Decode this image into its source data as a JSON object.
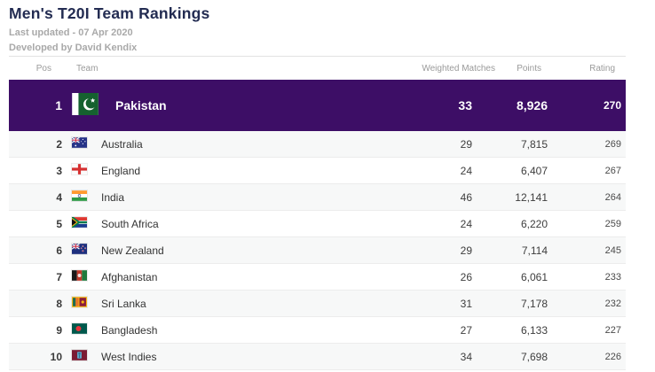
{
  "page": {
    "title": "Men's T20I Team Rankings",
    "last_updated": "Last updated - 07 Apr 2020",
    "developed_by": "Developed by David Kendix"
  },
  "colors": {
    "highlight_purple": "#3d0e66",
    "title_navy": "#232c52"
  },
  "table": {
    "columns": [
      "Pos",
      "Team",
      "Weighted Matches",
      "Points",
      "Rating"
    ],
    "rows": [
      {
        "pos": "1",
        "team": "Pakistan",
        "flag": "pakistan-flag",
        "weighted_matches": "33",
        "points": "8,926",
        "rating": "270",
        "highlight": true
      },
      {
        "pos": "2",
        "team": "Australia",
        "flag": "australia-flag",
        "weighted_matches": "29",
        "points": "7,815",
        "rating": "269"
      },
      {
        "pos": "3",
        "team": "England",
        "flag": "england-flag",
        "weighted_matches": "24",
        "points": "6,407",
        "rating": "267"
      },
      {
        "pos": "4",
        "team": "India",
        "flag": "india-flag",
        "weighted_matches": "46",
        "points": "12,141",
        "rating": "264"
      },
      {
        "pos": "5",
        "team": "South Africa",
        "flag": "south-africa-flag",
        "weighted_matches": "24",
        "points": "6,220",
        "rating": "259"
      },
      {
        "pos": "6",
        "team": "New Zealand",
        "flag": "new-zealand-flag",
        "weighted_matches": "29",
        "points": "7,114",
        "rating": "245"
      },
      {
        "pos": "7",
        "team": "Afghanistan",
        "flag": "afghanistan-flag",
        "weighted_matches": "26",
        "points": "6,061",
        "rating": "233"
      },
      {
        "pos": "8",
        "team": "Sri Lanka",
        "flag": "sri-lanka-flag",
        "weighted_matches": "31",
        "points": "7,178",
        "rating": "232"
      },
      {
        "pos": "9",
        "team": "Bangladesh",
        "flag": "bangladesh-flag",
        "weighted_matches": "27",
        "points": "6,133",
        "rating": "227"
      },
      {
        "pos": "10",
        "team": "West Indies",
        "flag": "west-indies-flag",
        "weighted_matches": "34",
        "points": "7,698",
        "rating": "226"
      }
    ]
  }
}
